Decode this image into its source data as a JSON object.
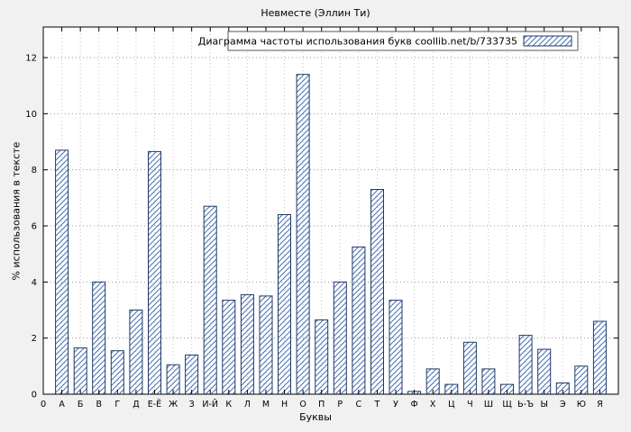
{
  "chart_data": {
    "type": "bar",
    "title": "Невместе (Эллин Ти)",
    "legend_label": "Диаграмма частоты использования букв coollib.net/b/733735",
    "xlabel": "Буквы",
    "ylabel": "% использования в тексте",
    "x_origin_label": "0",
    "categories": [
      "А",
      "Б",
      "В",
      "Г",
      "Д",
      "Е-Ё",
      "Ж",
      "З",
      "И-Й",
      "К",
      "Л",
      "М",
      "Н",
      "О",
      "П",
      "Р",
      "С",
      "Т",
      "У",
      "Ф",
      "Х",
      "Ц",
      "Ч",
      "Ш",
      "Щ",
      "Ь-Ъ",
      "Ы",
      "Э",
      "Ю",
      "Я"
    ],
    "values": [
      8.7,
      1.65,
      4.0,
      1.55,
      3.0,
      8.65,
      1.05,
      1.4,
      6.7,
      3.35,
      3.55,
      3.5,
      6.4,
      11.4,
      2.65,
      4.0,
      5.25,
      7.3,
      3.35,
      0.1,
      0.9,
      0.35,
      1.85,
      0.9,
      0.35,
      2.1,
      1.6,
      0.4,
      1.0,
      2.6
    ],
    "yticks": [
      0,
      2,
      4,
      6,
      8,
      10,
      12
    ],
    "ylim": [
      0,
      13.1
    ],
    "grid": true,
    "legend_position": "top",
    "colors": {
      "bar_edge": "#1f3864",
      "bar_hatch": "#4670b4",
      "plot_bg": "#ffffff",
      "figure_bg": "#f1f1f1",
      "grid": "#9a9a9a",
      "axis": "#000000"
    }
  }
}
